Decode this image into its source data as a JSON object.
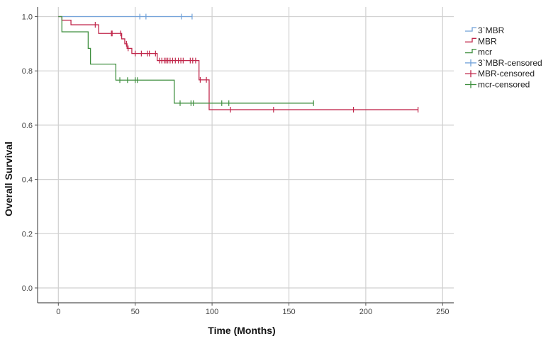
{
  "chart_data": {
    "type": "line",
    "subtype": "kaplan-meier step",
    "title": "",
    "xlabel": "Time (Months)",
    "ylabel": "Overall Survival",
    "xlim": [
      0,
      250
    ],
    "ylim": [
      0.0,
      1.0
    ],
    "xticks": [
      "0",
      "50",
      "100",
      "150",
      "200",
      "250"
    ],
    "yticks": [
      "0.0",
      "0.2",
      "0.4",
      "0.6",
      "0.8",
      "1.0"
    ],
    "grid": true,
    "legend_position": "right",
    "legend": [
      "3`MBR",
      "MBR",
      "mcr",
      "3`MBR-censored",
      "MBR-censored",
      "mcr-censored"
    ],
    "series": [
      {
        "name": "3`MBR",
        "color": "#6fa0d8",
        "steps": [
          [
            0,
            1.0
          ]
        ],
        "end": 87,
        "censored": [
          53,
          57,
          80,
          87
        ]
      },
      {
        "name": "MBR",
        "color": "#c0264a",
        "steps": [
          [
            0,
            1.0
          ],
          [
            2.3,
            0.987
          ],
          [
            8.2,
            0.97
          ],
          [
            26.2,
            0.938
          ],
          [
            41.2,
            0.918
          ],
          [
            43.2,
            0.9
          ],
          [
            44.7,
            0.883
          ],
          [
            47.8,
            0.864
          ],
          [
            64.3,
            0.838
          ],
          [
            91.5,
            0.767
          ],
          [
            98.1,
            0.657
          ]
        ],
        "end": 234,
        "censored": [
          24,
          34.5,
          35,
          40.5,
          44.3,
          45.4,
          50,
          54,
          58,
          59.2,
          63.2,
          65.8,
          67.3,
          68.9,
          70,
          71.2,
          72.7,
          74.3,
          76.1,
          78.1,
          79.7,
          81.2,
          85.8,
          87.4,
          89.3,
          92.3,
          96.3,
          112,
          140,
          192,
          234
        ]
      },
      {
        "name": "mcr",
        "color": "#3f8f3f",
        "steps": [
          [
            0,
            1.0
          ],
          [
            2.3,
            0.944
          ],
          [
            19.4,
            0.883
          ],
          [
            20.9,
            0.825
          ],
          [
            37.4,
            0.766
          ],
          [
            75.4,
            0.681
          ]
        ],
        "end": 166,
        "censored": [
          40,
          45,
          50,
          51.4,
          79.2,
          86.3,
          87.8,
          106.3,
          110.9,
          166
        ]
      }
    ]
  }
}
